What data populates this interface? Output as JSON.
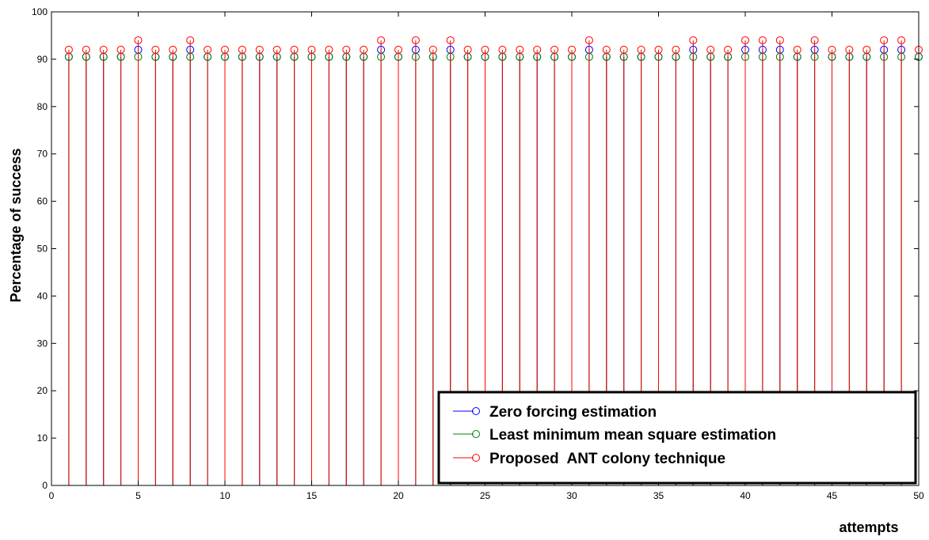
{
  "chart_data": {
    "type": "stem",
    "xlabel": "attempts",
    "ylabel": "Percentage of success",
    "xlim": [
      0,
      50
    ],
    "ylim": [
      0,
      100
    ],
    "xticks": [
      0,
      5,
      10,
      15,
      20,
      25,
      30,
      35,
      40,
      45,
      50
    ],
    "yticks": [
      0,
      10,
      20,
      30,
      40,
      50,
      60,
      70,
      80,
      90,
      100
    ],
    "grid": false,
    "legend_position": "bottom-right",
    "x": [
      1,
      2,
      3,
      4,
      5,
      6,
      7,
      8,
      9,
      10,
      11,
      12,
      13,
      14,
      15,
      16,
      17,
      18,
      19,
      20,
      21,
      22,
      23,
      24,
      25,
      26,
      27,
      28,
      29,
      30,
      31,
      32,
      33,
      34,
      35,
      36,
      37,
      38,
      39,
      40,
      41,
      42,
      43,
      44,
      45,
      46,
      47,
      48,
      49,
      50
    ],
    "series": [
      {
        "name": "Zero forcing estimation",
        "color": "#0000ff",
        "values": [
          90.5,
          90.5,
          90.5,
          90.5,
          92,
          90.5,
          90.5,
          92,
          90.5,
          90.5,
          90.5,
          90.5,
          90.5,
          90.5,
          90.5,
          90.5,
          90.5,
          90.5,
          92,
          90.5,
          92,
          90.5,
          92,
          90.5,
          90.5,
          90.5,
          90.5,
          90.5,
          90.5,
          90.5,
          92,
          90.5,
          90.5,
          90.5,
          90.5,
          90.5,
          92,
          90.5,
          90.5,
          92,
          92,
          92,
          90.5,
          92,
          90.5,
          90.5,
          90.5,
          92,
          92,
          90.5
        ]
      },
      {
        "name": "Least minimum mean square estimation",
        "color": "#008000",
        "values": [
          90.5,
          90.5,
          90.5,
          90.5,
          90.5,
          90.5,
          90.5,
          90.5,
          90.5,
          90.5,
          90.5,
          90.5,
          90.5,
          90.5,
          90.5,
          90.5,
          90.5,
          90.5,
          90.5,
          90.5,
          90.5,
          90.5,
          90.5,
          90.5,
          90.5,
          90.5,
          90.5,
          90.5,
          90.5,
          90.5,
          90.5,
          90.5,
          90.5,
          90.5,
          90.5,
          90.5,
          90.5,
          90.5,
          90.5,
          90.5,
          90.5,
          90.5,
          90.5,
          90.5,
          90.5,
          90.5,
          90.5,
          90.5,
          90.5,
          90.5
        ]
      },
      {
        "name": "Proposed  ANT colony technique",
        "color": "#ff0000",
        "values": [
          92,
          92,
          92,
          92,
          94,
          92,
          92,
          94,
          92,
          92,
          92,
          92,
          92,
          92,
          92,
          92,
          92,
          92,
          94,
          92,
          94,
          92,
          94,
          92,
          92,
          92,
          92,
          92,
          92,
          92,
          94,
          92,
          92,
          92,
          92,
          92,
          94,
          92,
          92,
          94,
          94,
          94,
          92,
          94,
          92,
          92,
          92,
          94,
          94,
          92
        ]
      }
    ]
  }
}
